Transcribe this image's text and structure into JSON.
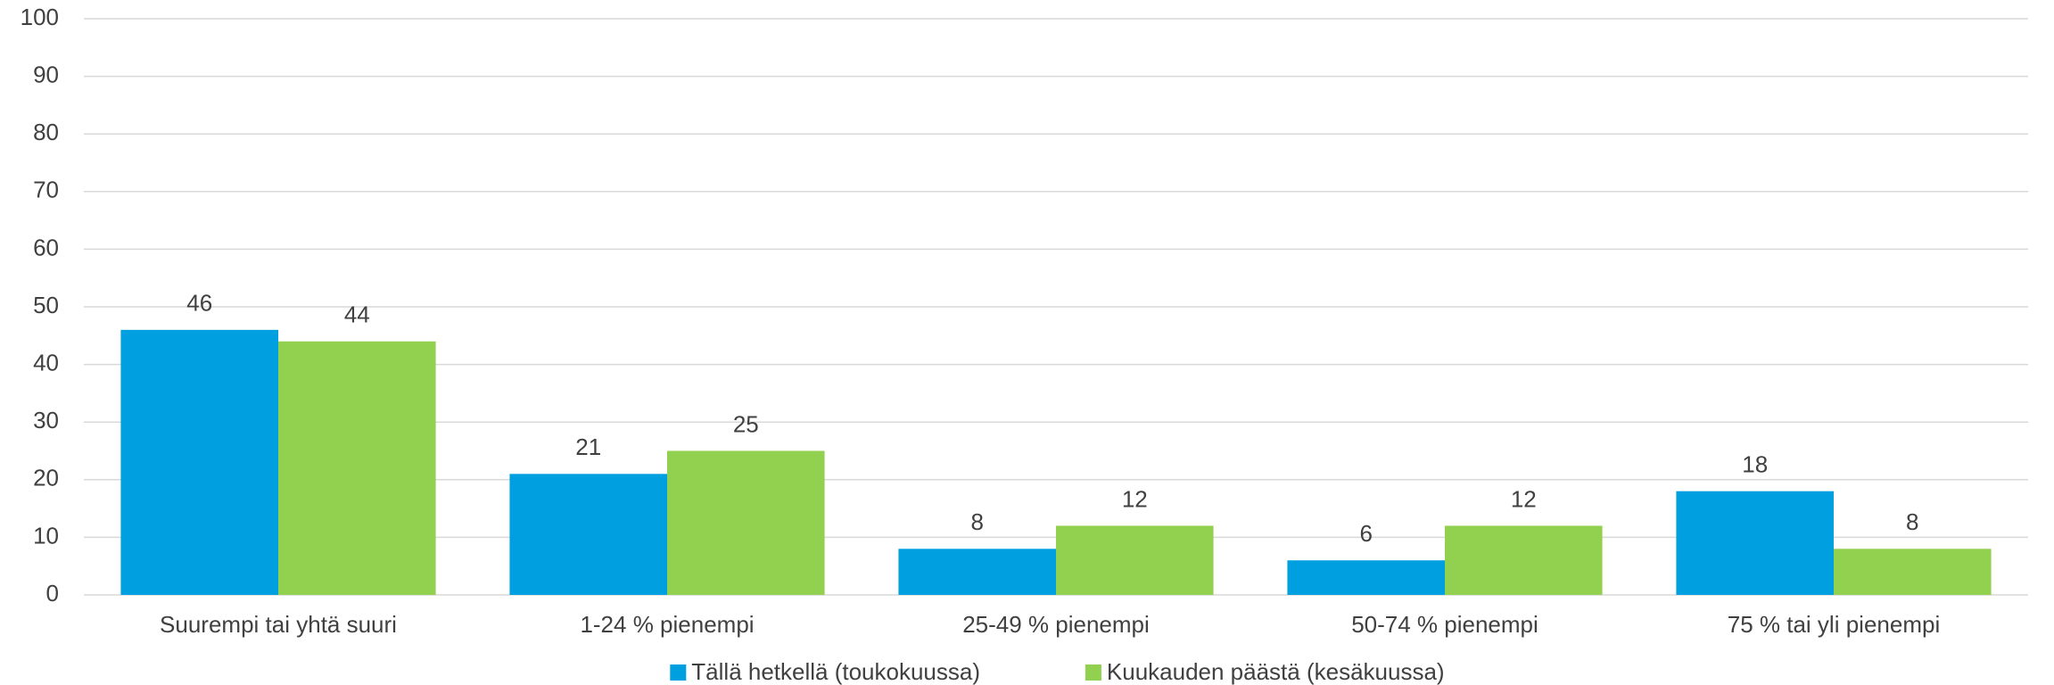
{
  "chart_data": {
    "type": "bar",
    "categories": [
      "Suurempi tai yhtä suuri",
      "1-24 % pienempi",
      "25-49 % pienempi",
      "50-74 % pienempi",
      "75 % tai yli pienempi"
    ],
    "series": [
      {
        "name": "Tällä hetkellä (toukokuussa)",
        "color": "#009fe0",
        "values": [
          46,
          21,
          8,
          6,
          18
        ]
      },
      {
        "name": "Kuukauden päästä (kesäkuussa)",
        "color": "#92d050",
        "values": [
          44,
          25,
          12,
          12,
          8
        ]
      }
    ],
    "ylim": [
      0,
      100
    ],
    "yticks": [
      0,
      10,
      20,
      30,
      40,
      50,
      60,
      70,
      80,
      90,
      100
    ],
    "grid": true,
    "legend": "bottom"
  }
}
